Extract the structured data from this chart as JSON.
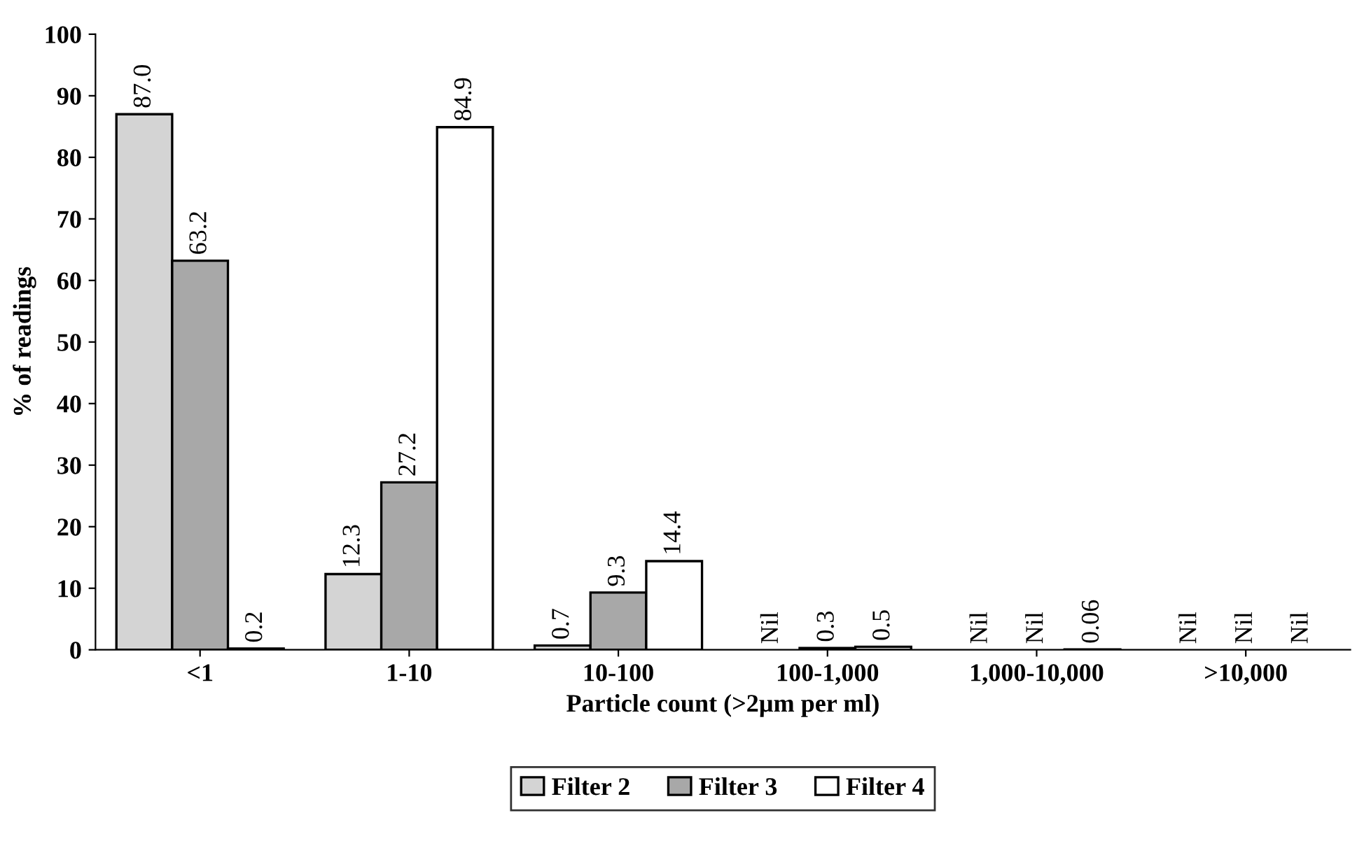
{
  "chart_data": {
    "type": "bar",
    "xlabel": "Particle count (>2µm per ml)",
    "ylabel": "% of readings",
    "categories": [
      "<1",
      "1-10",
      "10-100",
      "100-1,000",
      "1,000-10,000",
      ">10,000"
    ],
    "series": [
      {
        "name": "Filter 2",
        "color": "#d4d4d4",
        "values": [
          87.0,
          12.3,
          0.7,
          null,
          null,
          null
        ],
        "value_labels": [
          "87.0",
          "12.3",
          "0.7",
          "Nil",
          "Nil",
          "Nil"
        ]
      },
      {
        "name": "Filter 3",
        "color": "#a8a8a8",
        "values": [
          63.2,
          27.2,
          9.3,
          0.3,
          null,
          null
        ],
        "value_labels": [
          "63.2",
          "27.2",
          "9.3",
          "0.3",
          "Nil",
          "Nil"
        ]
      },
      {
        "name": "Filter 4",
        "color": "#ffffff",
        "values": [
          0.2,
          84.9,
          14.4,
          0.5,
          0.06,
          null
        ],
        "value_labels": [
          "0.2",
          "84.9",
          "14.4",
          "0.5",
          "0.06",
          "Nil"
        ]
      }
    ],
    "ylim": [
      0,
      100
    ],
    "yticks": [
      0,
      10,
      20,
      30,
      40,
      50,
      60,
      70,
      80,
      90,
      100
    ],
    "grid": false,
    "legend": "bottom"
  }
}
